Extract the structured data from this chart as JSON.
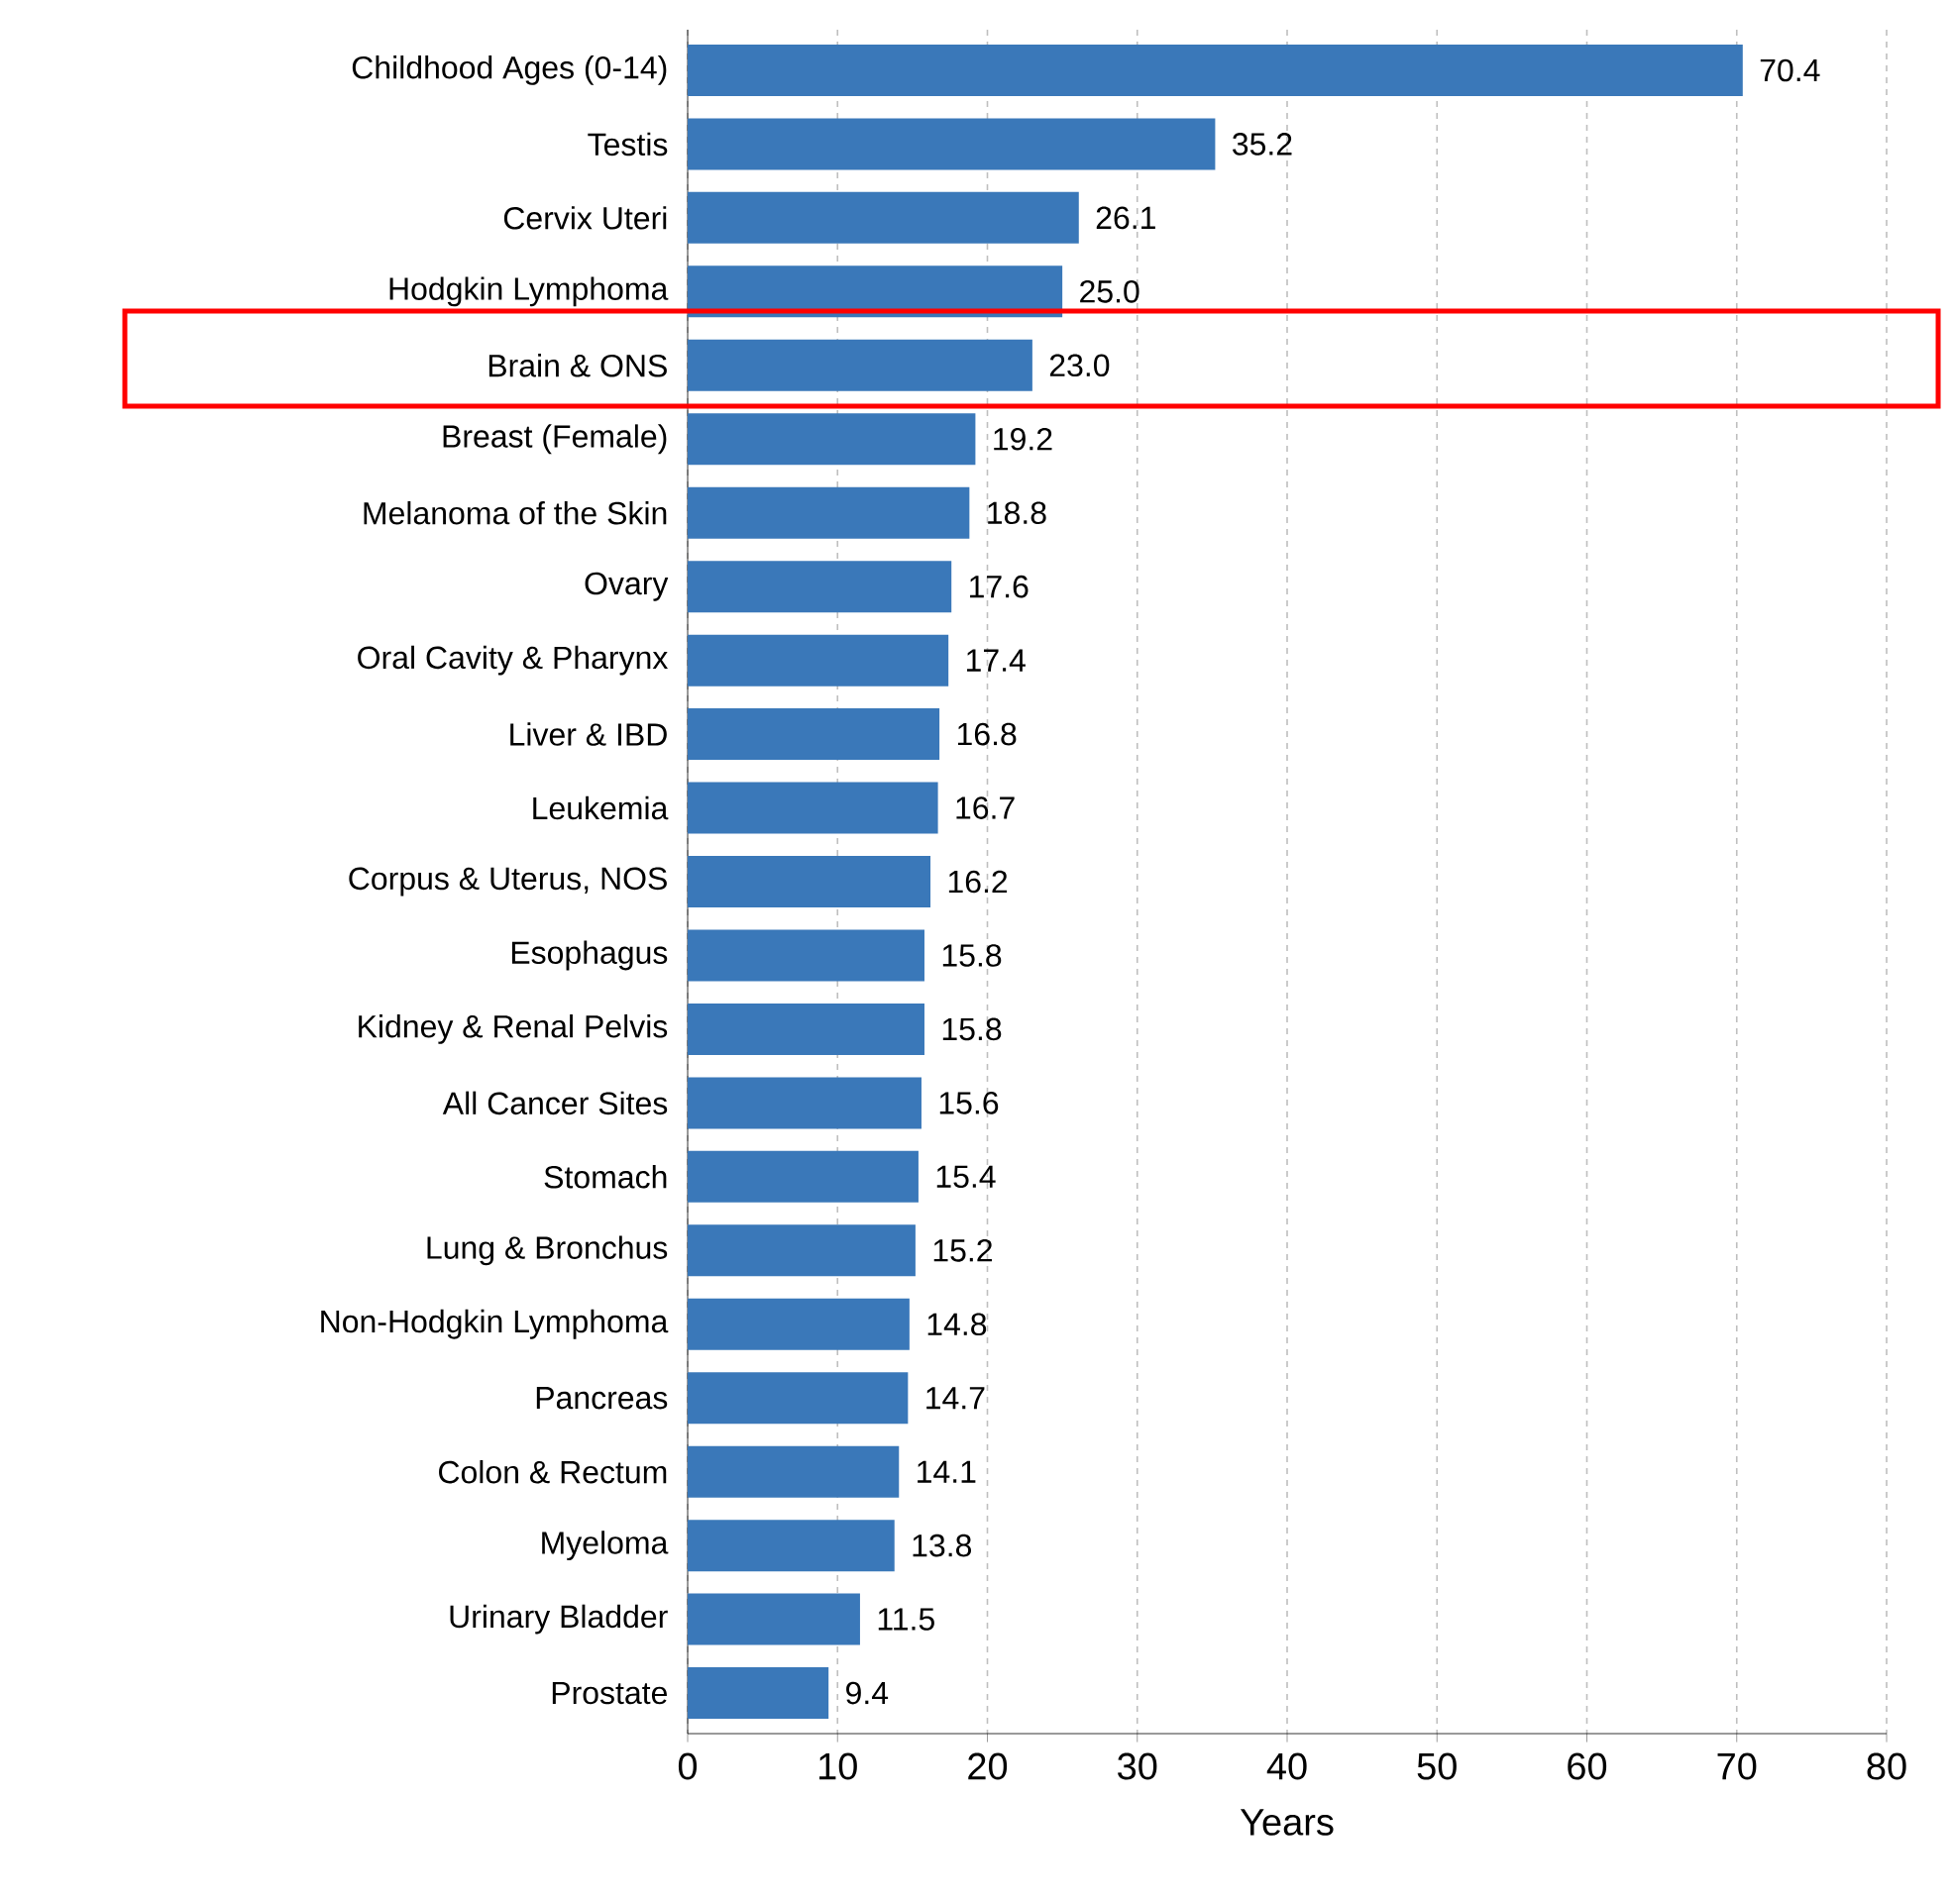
{
  "chart_data": {
    "type": "bar",
    "orientation": "horizontal",
    "xlabel": "Years",
    "categories": [
      "Childhood Ages (0-14)",
      "Testis",
      "Cervix Uteri",
      "Hodgkin Lymphoma",
      "Brain & ONS",
      "Breast (Female)",
      "Melanoma of the Skin",
      "Ovary",
      "Oral Cavity & Pharynx",
      "Liver & IBD",
      "Leukemia",
      "Corpus & Uterus, NOS",
      "Esophagus",
      "Kidney & Renal Pelvis",
      "All Cancer Sites",
      "Stomach",
      "Lung & Bronchus",
      "Non-Hodgkin Lymphoma",
      "Pancreas",
      "Colon & Rectum",
      "Myeloma",
      "Urinary Bladder",
      "Prostate"
    ],
    "values": [
      70.4,
      35.2,
      26.1,
      25.0,
      23.0,
      19.2,
      18.8,
      17.6,
      17.4,
      16.8,
      16.7,
      16.2,
      15.8,
      15.8,
      15.6,
      15.4,
      15.2,
      14.8,
      14.7,
      14.1,
      13.8,
      11.5,
      9.4
    ],
    "value_labels": [
      "70.4",
      "35.2",
      "26.1",
      "25.0",
      "23.0",
      "19.2",
      "18.8",
      "17.6",
      "17.4",
      "16.8",
      "16.7",
      "16.2",
      "15.8",
      "15.8",
      "15.6",
      "15.4",
      "15.2",
      "14.8",
      "14.7",
      "14.1",
      "13.8",
      "11.5",
      "9.4"
    ],
    "color": "#3a78b9",
    "grid": "x",
    "xlim": [
      0,
      80
    ],
    "xticks": [
      0,
      10,
      20,
      30,
      40,
      50,
      60,
      70,
      80
    ]
  }
}
